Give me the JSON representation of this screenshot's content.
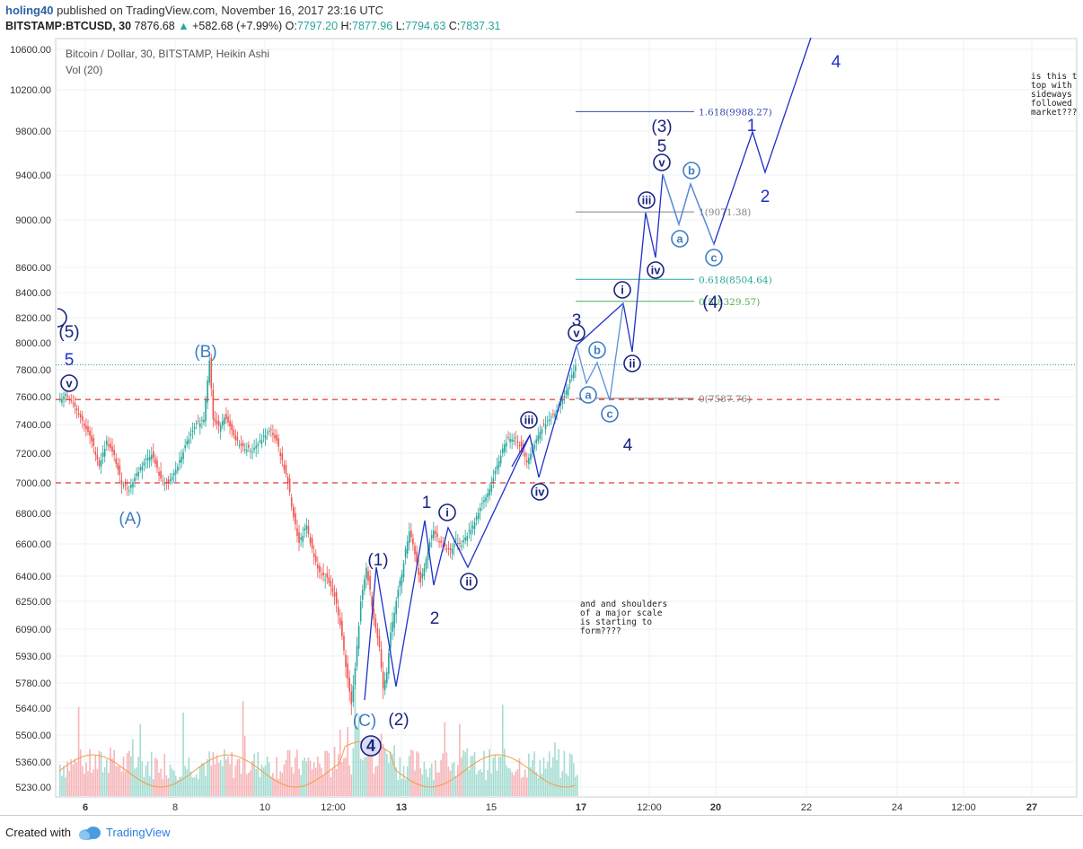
{
  "header": {
    "author": "holing40",
    "published_text": "published on TradingView.com, November 16, 2017 23:16 UTC",
    "symbol": "BITSTAMP:BTCUSD, 30",
    "last": "7876.68",
    "change": "+582.68 (+7.99%)",
    "o_label": "O:",
    "o": "7797.20",
    "h_label": "H:",
    "h": "7877.96",
    "l_label": "L:",
    "l": "7794.63",
    "c_label": "C:",
    "c": "7837.31"
  },
  "chart_data": {
    "type": "candlestick",
    "title": "Bitcoin / Dollar, 30, BITSTAMP, Heikin Ashi",
    "subtitle": "Vol (20)",
    "y_ticks": [
      "10600.00",
      "10200.00",
      "9800.00",
      "9400.00",
      "9000.00",
      "8600.00",
      "8400.00",
      "8200.00",
      "8000.00",
      "7800.00",
      "7600.00",
      "7400.00",
      "7200.00",
      "7000.00",
      "6800.00",
      "6600.00",
      "6400.00",
      "6250.00",
      "6090.00",
      "5930.00",
      "5780.00",
      "5640.00",
      "5500.00",
      "5360.00",
      "5230.00"
    ],
    "x_ticks": [
      "6",
      "8",
      "10",
      "12:00",
      "13",
      "15",
      "17",
      "12:00",
      "20",
      "22",
      "24",
      "12:00",
      "27"
    ],
    "price_path": [
      [
        0,
        7560
      ],
      [
        8,
        7620
      ],
      [
        16,
        7560
      ],
      [
        25,
        7440
      ],
      [
        35,
        7300
      ],
      [
        44,
        7120
      ],
      [
        52,
        7280
      ],
      [
        60,
        7180
      ],
      [
        68,
        7000
      ],
      [
        76,
        6960
      ],
      [
        84,
        7060
      ],
      [
        92,
        7140
      ],
      [
        100,
        7200
      ],
      [
        110,
        7020
      ],
      [
        118,
        6990
      ],
      [
        128,
        7110
      ],
      [
        138,
        7280
      ],
      [
        148,
        7400
      ],
      [
        156,
        7440
      ],
      [
        162,
        7880
      ],
      [
        166,
        7440
      ],
      [
        172,
        7380
      ],
      [
        178,
        7460
      ],
      [
        184,
        7380
      ],
      [
        190,
        7290
      ],
      [
        198,
        7240
      ],
      [
        208,
        7220
      ],
      [
        216,
        7280
      ],
      [
        222,
        7330
      ],
      [
        228,
        7360
      ],
      [
        234,
        7280
      ],
      [
        240,
        7150
      ],
      [
        246,
        7000
      ],
      [
        252,
        6780
      ],
      [
        258,
        6600
      ],
      [
        266,
        6720
      ],
      [
        272,
        6560
      ],
      [
        280,
        6420
      ],
      [
        288,
        6380
      ],
      [
        296,
        6280
      ],
      [
        302,
        6120
      ],
      [
        310,
        5800
      ],
      [
        314,
        5660
      ],
      [
        318,
        5860
      ],
      [
        324,
        6240
      ],
      [
        330,
        6450
      ],
      [
        334,
        6310
      ],
      [
        338,
        6160
      ],
      [
        344,
        5980
      ],
      [
        348,
        5760
      ],
      [
        352,
        5850
      ],
      [
        356,
        6060
      ],
      [
        362,
        6260
      ],
      [
        368,
        6420
      ],
      [
        372,
        6560
      ],
      [
        376,
        6690
      ],
      [
        380,
        6600
      ],
      [
        384,
        6480
      ],
      [
        388,
        6360
      ],
      [
        392,
        6450
      ],
      [
        396,
        6560
      ],
      [
        402,
        6690
      ],
      [
        408,
        6620
      ],
      [
        414,
        6580
      ],
      [
        420,
        6560
      ],
      [
        426,
        6620
      ],
      [
        432,
        6600
      ],
      [
        438,
        6660
      ],
      [
        444,
        6720
      ],
      [
        450,
        6810
      ],
      [
        456,
        6880
      ],
      [
        460,
        6930
      ],
      [
        466,
        7030
      ],
      [
        472,
        7150
      ],
      [
        478,
        7270
      ],
      [
        484,
        7310
      ],
      [
        490,
        7300
      ],
      [
        496,
        7240
      ],
      [
        502,
        7150
      ],
      [
        510,
        7260
      ],
      [
        516,
        7360
      ],
      [
        522,
        7410
      ],
      [
        530,
        7460
      ],
      [
        536,
        7520
      ],
      [
        542,
        7600
      ],
      [
        548,
        7720
      ],
      [
        554,
        7830
      ]
    ],
    "ref_lines_red_dashed": [
      7580,
      7000
    ],
    "ref_line_green_dotted": 7837,
    "fib_levels": [
      {
        "label": "1.618(9988.27)",
        "value": 9988,
        "color": "#3949ab"
      },
      {
        "label": "1(9071.38)",
        "value": 9071,
        "color": "#808080"
      },
      {
        "label": "0.618(8504.64)",
        "value": 8505,
        "color": "#26a69a"
      },
      {
        "label": "0.5(8329.57)",
        "value": 8330,
        "color": "#4caf50"
      },
      {
        "label": "0(7587.76)",
        "value": 7588,
        "color": "#808080"
      }
    ],
    "wave_labels": [
      {
        "text": "(A)",
        "color": "#3f7ec4"
      },
      {
        "text": "(B)",
        "color": "#3f7ec4"
      },
      {
        "text": "(C)",
        "color": "#3f7ec4"
      },
      {
        "text": "(1)",
        "color": "#1a237e"
      },
      {
        "text": "(2)",
        "color": "#1a237e"
      },
      {
        "text": "(3)",
        "color": "#1a237e"
      },
      {
        "text": "(4)",
        "color": "#1a237e"
      },
      {
        "text": "(5)",
        "color": "#1a237e"
      },
      {
        "text": "1",
        "color": "#1a237e"
      },
      {
        "text": "2",
        "color": "#1a237e"
      },
      {
        "text": "3",
        "color": "#1a237e"
      },
      {
        "text": "4",
        "color": "#1a237e"
      },
      {
        "text": "5",
        "color": "#1a237e"
      }
    ],
    "circled_labels": [
      {
        "text": "v",
        "style": "dark"
      },
      {
        "text": "i",
        "style": "dark"
      },
      {
        "text": "ii",
        "style": "dark"
      },
      {
        "text": "iii",
        "style": "dark"
      },
      {
        "text": "iv",
        "style": "dark"
      },
      {
        "text": "v",
        "style": "dark"
      },
      {
        "text": "i",
        "style": "dark"
      },
      {
        "text": "ii",
        "style": "dark"
      },
      {
        "text": "iii",
        "style": "dark"
      },
      {
        "text": "iv",
        "style": "dark"
      },
      {
        "text": "v",
        "style": "dark"
      },
      {
        "text": "a",
        "style": "light"
      },
      {
        "text": "b",
        "style": "light"
      },
      {
        "text": "c",
        "style": "light"
      },
      {
        "text": "a",
        "style": "light"
      },
      {
        "text": "b",
        "style": "light"
      },
      {
        "text": "c",
        "style": "light"
      },
      {
        "text": "4",
        "style": "big"
      }
    ],
    "annotations": [
      "and and shoulders\nof a major scale\nis starting to\nform????",
      "is this t\ntop with\nsideways\nfollowed\nmarket???"
    ],
    "colors": {
      "up": "#26a69a",
      "down": "#ef5350",
      "wave": "#1f30c8",
      "wave_light": "#5c8fd6",
      "grid": "#eef0f3"
    }
  },
  "footer": {
    "created_with": "Created with",
    "brand": "TradingView"
  }
}
